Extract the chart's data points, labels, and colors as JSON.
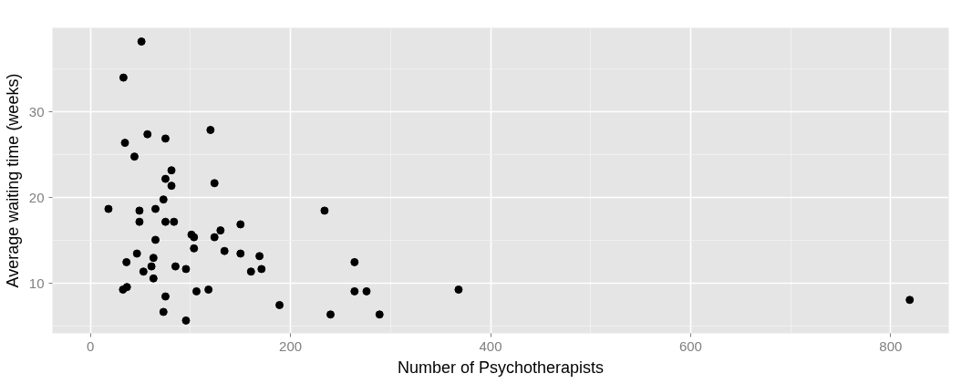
{
  "chart_data": {
    "type": "scatter",
    "xlabel": "Number of Psychotherapists",
    "ylabel": "Average waiting time (weeks)",
    "x": [
      51,
      33,
      120,
      57,
      75,
      34.5,
      44,
      81,
      75,
      81,
      124,
      73,
      18,
      49,
      65,
      49,
      75,
      83.5,
      150,
      130,
      101,
      103.5,
      124,
      65,
      103.5,
      46.5,
      134,
      150,
      63,
      36,
      61,
      85,
      53,
      95.5,
      63,
      160.5,
      32.5,
      36.5,
      75,
      106,
      118,
      73,
      95.5,
      169,
      171,
      189,
      234,
      264,
      264,
      276,
      240,
      289,
      368,
      819
    ],
    "values": [
      38.2,
      34.0,
      27.9,
      27.4,
      26.9,
      26.4,
      24.8,
      23.2,
      22.2,
      21.4,
      21.7,
      19.8,
      18.7,
      18.5,
      18.7,
      17.2,
      17.2,
      17.2,
      16.9,
      16.2,
      15.7,
      15.4,
      15.4,
      15.1,
      14.1,
      13.5,
      13.8,
      13.5,
      13.0,
      12.5,
      12.0,
      12.0,
      11.4,
      11.7,
      10.6,
      11.4,
      9.3,
      9.6,
      8.5,
      9.1,
      9.3,
      6.7,
      5.7,
      13.2,
      11.7,
      7.5,
      18.5,
      12.5,
      9.1,
      9.1,
      6.4,
      6.4,
      9.3,
      8.1
    ],
    "color": "#000000",
    "marker": "circle",
    "grid": true,
    "xlim": [
      -38,
      858
    ],
    "ylim": [
      4.2,
      39.8
    ],
    "xticks": [
      0,
      200,
      400,
      600,
      800
    ],
    "yticks": [
      10,
      20,
      30
    ]
  }
}
